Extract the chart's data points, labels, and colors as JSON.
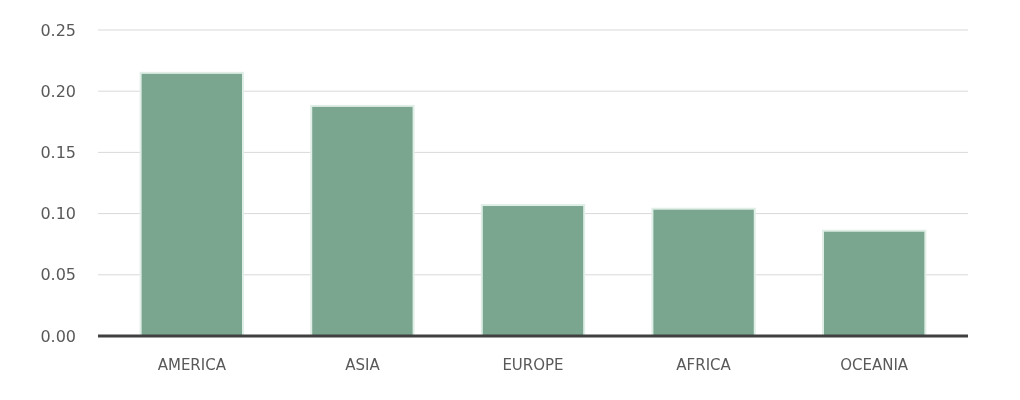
{
  "chart_data": {
    "type": "bar",
    "categories": [
      "AMERICA",
      "ASIA",
      "EUROPE",
      "AFRICA",
      "OCEANIA"
    ],
    "values": [
      0.215,
      0.188,
      0.107,
      0.104,
      0.086
    ],
    "color": "#7aa58f",
    "ylim": [
      0,
      0.25
    ],
    "yticks": [
      {
        "value": 0,
        "label": "0.00"
      },
      {
        "value": 0.05,
        "label": "0.05"
      },
      {
        "value": 0.1,
        "label": "0.10"
      },
      {
        "value": 0.15,
        "label": "0.15"
      },
      {
        "value": 0.2,
        "label": "0.20"
      },
      {
        "value": 0.25,
        "label": "0.25"
      }
    ],
    "grid": "y"
  }
}
